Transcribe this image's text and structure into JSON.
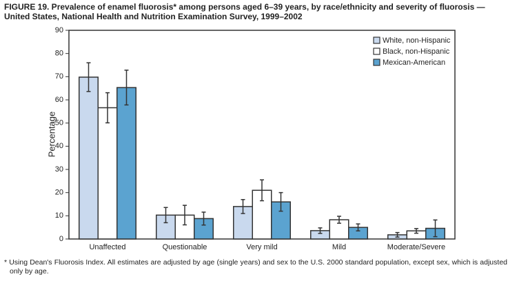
{
  "chart_data": {
    "type": "bar",
    "title": [
      "FIGURE 19. Prevalence of enamel fluorosis* among persons aged 6–39 years, by race/ethnicity and severity of fluorosis —",
      "United States, National Health and Nutrition Examination Survey, 1999–2002"
    ],
    "y_label": "Percentage",
    "categories": [
      "Unaffected",
      "Questionable",
      "Very mild",
      "Mild",
      "Moderate/Severe"
    ],
    "series": [
      {
        "name": "White, non-Hispanic",
        "color": "#c9d9ee",
        "values": [
          69.8,
          10.3,
          14,
          3.6,
          1.8
        ],
        "errors": [
          6.2,
          3.3,
          3,
          1.2,
          1
        ]
      },
      {
        "name": "Black, non-Hispanic",
        "color": "#ffffff",
        "values": [
          56.6,
          10.3,
          21,
          8.3,
          3.5
        ],
        "errors": [
          6.5,
          4.2,
          4.5,
          1.5,
          1
        ]
      },
      {
        "name": "Mexican-American",
        "color": "#5ba3d0",
        "values": [
          65.3,
          8.8,
          16,
          5,
          4.6
        ],
        "errors": [
          7.5,
          2.8,
          4,
          1.5,
          3.6
        ]
      }
    ],
    "ylim": [
      0,
      90
    ],
    "yticks": [
      0,
      10,
      20,
      30,
      40,
      50,
      60,
      70,
      80,
      90
    ],
    "legend": "top-right",
    "footnote": "* Using Dean's Fluorosis Index. All estimates are adjusted by age (single years) and sex to the U.S. 2000 standard population, except sex, which is adjusted only by age."
  }
}
